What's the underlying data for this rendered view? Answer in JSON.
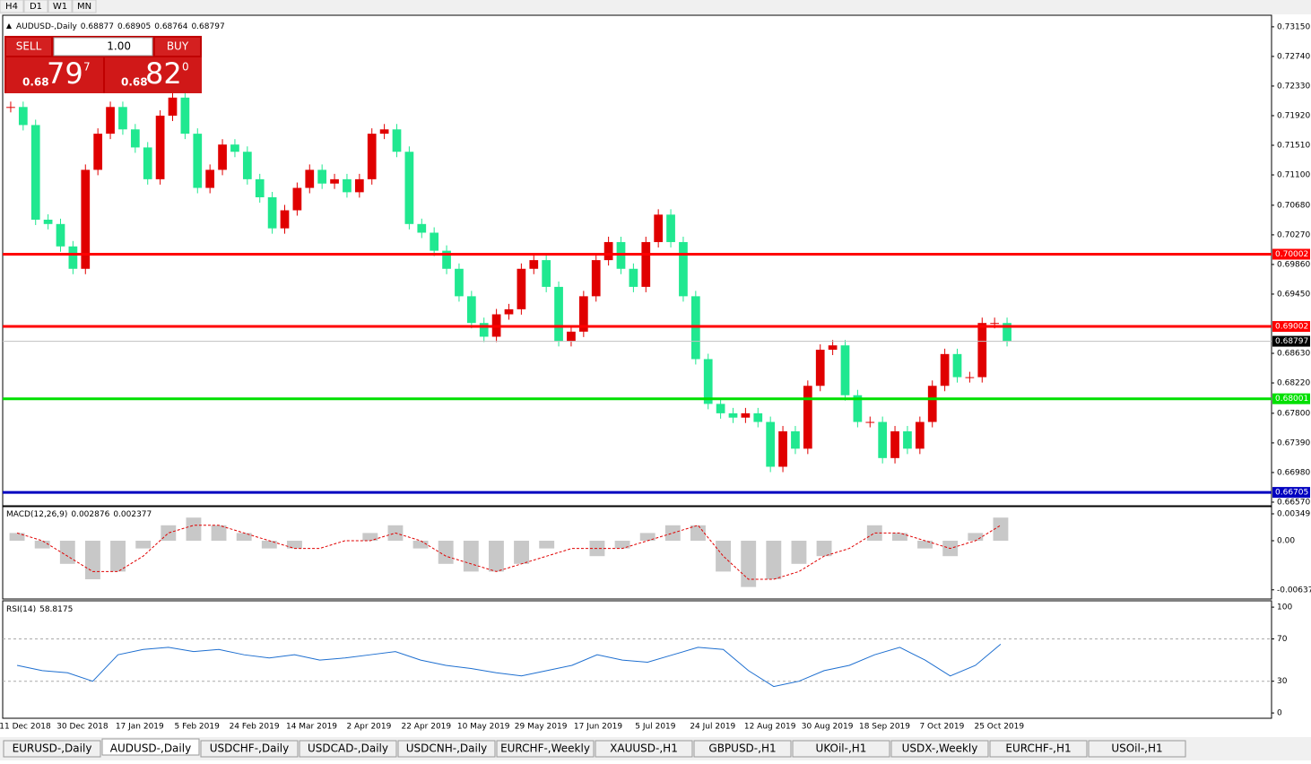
{
  "toolbar": {
    "timeframes": [
      "H4",
      "D1",
      "W1",
      "MN"
    ]
  },
  "trade_panel": {
    "sell": "SELL",
    "buy": "BUY",
    "lot": "1.00",
    "sell_price": [
      "0.68",
      "79",
      "7"
    ],
    "buy_price": [
      "0.68",
      "82",
      "0"
    ]
  },
  "chart_data": [
    {
      "type": "candlestick",
      "title": "AUDUSD-,Daily",
      "ohlc": [
        0.68877,
        0.68905,
        0.68764,
        0.68797
      ],
      "closes": [
        0.7204,
        0.7179,
        0.7048,
        0.7042,
        0.7011,
        0.698,
        0.7117,
        0.7167,
        0.7204,
        0.7173,
        0.7148,
        0.7104,
        0.7192,
        0.7217,
        0.7167,
        0.7092,
        0.7117,
        0.7152,
        0.7142,
        0.7104,
        0.7079,
        0.7036,
        0.7061,
        0.7092,
        0.7117,
        0.7098,
        0.7104,
        0.7086,
        0.7104,
        0.7167,
        0.7173,
        0.7142,
        0.7042,
        0.703,
        0.7005,
        0.698,
        0.6942,
        0.6905,
        0.6886,
        0.6917,
        0.6924,
        0.698,
        0.6992,
        0.6955,
        0.688,
        0.6893,
        0.6942,
        0.6992,
        0.7017,
        0.698,
        0.6955,
        0.7017,
        0.7055,
        0.7017,
        0.6942,
        0.6855,
        0.6793,
        0.678,
        0.6774,
        0.678,
        0.6768,
        0.6706,
        0.6755,
        0.6731,
        0.6818,
        0.6868,
        0.6874,
        0.6805,
        0.6768,
        0.6768,
        0.6718,
        0.6755,
        0.6731,
        0.6768,
        0.6818,
        0.6862,
        0.683,
        0.683,
        0.6905,
        0.6905,
        0.688
      ],
      "up_color": "#e00000",
      "down_color": "#20e890",
      "ylim": [
        0.6652,
        0.7331
      ],
      "yticks": [
        {
          "value": 0.7315,
          "label": "0.73150"
        },
        {
          "value": 0.7274,
          "label": "0.72740"
        },
        {
          "value": 0.7233,
          "label": "0.72330"
        },
        {
          "value": 0.7192,
          "label": "0.71920"
        },
        {
          "value": 0.7151,
          "label": "0.71510"
        },
        {
          "value": 0.711,
          "label": "0.71100"
        },
        {
          "value": 0.7068,
          "label": "0.70680"
        },
        {
          "value": 0.7027,
          "label": "0.70270"
        },
        {
          "value": 0.6986,
          "label": "0.69860"
        },
        {
          "value": 0.6945,
          "label": "0.69450"
        },
        {
          "value": 0.6863,
          "label": "0.68630"
        },
        {
          "value": 0.6822,
          "label": "0.68220"
        },
        {
          "value": 0.678,
          "label": "0.67800"
        },
        {
          "value": 0.6739,
          "label": "0.67390"
        },
        {
          "value": 0.6698,
          "label": "0.66980"
        },
        {
          "value": 0.6657,
          "label": "0.66570"
        }
      ],
      "hlines": [
        {
          "value": 0.70002,
          "color": "#ff0000"
        },
        {
          "value": 0.69002,
          "color": "#ff0000"
        },
        {
          "value": 0.68001,
          "color": "#00e000"
        },
        {
          "value": 0.66705,
          "color": "#0000c0"
        }
      ],
      "current_price": 0.68797,
      "dates": [
        "11 Dec 2018",
        "30 Dec 2018",
        "17 Jan 2019",
        "5 Feb 2019",
        "24 Feb 2019",
        "14 Mar 2019",
        "2 Apr 2019",
        "22 Apr 2019",
        "10 May 2019",
        "29 May 2019",
        "17 Jun 2019",
        "5 Jul 2019",
        "24 Jul 2019",
        "12 Aug 2019",
        "30 Aug 2019",
        "18 Sep 2019",
        "7 Oct 2019",
        "25 Oct 2019"
      ]
    },
    {
      "type": "macd",
      "title": "MACD(12,26,9)",
      "legend_values": [
        0.002876,
        0.002377
      ],
      "histogram": [
        0.001,
        -0.001,
        -0.003,
        -0.005,
        -0.004,
        -0.001,
        0.002,
        0.003,
        0.002,
        0.001,
        -0.001,
        -0.001,
        0.0,
        0.0,
        0.001,
        0.002,
        -0.001,
        -0.003,
        -0.004,
        -0.004,
        -0.003,
        -0.001,
        0.0,
        -0.002,
        -0.001,
        0.001,
        0.002,
        0.002,
        -0.004,
        -0.006,
        -0.005,
        -0.003,
        -0.002,
        0.0,
        0.002,
        0.001,
        -0.001,
        -0.002,
        0.001,
        0.003
      ],
      "signal": [
        0.001,
        0.0,
        -0.002,
        -0.004,
        -0.004,
        -0.002,
        0.001,
        0.002,
        0.002,
        0.001,
        0.0,
        -0.001,
        -0.001,
        0.0,
        0.0,
        0.001,
        0.0,
        -0.002,
        -0.003,
        -0.004,
        -0.003,
        -0.002,
        -0.001,
        -0.001,
        -0.001,
        0.0,
        0.001,
        0.002,
        -0.002,
        -0.005,
        -0.005,
        -0.004,
        -0.002,
        -0.001,
        0.001,
        0.001,
        0.0,
        -0.001,
        0.0,
        0.002
      ],
      "ylim": [
        -0.00756,
        0.00442
      ],
      "yticks": [
        {
          "value": 0.00349,
          "label": "0.00349"
        },
        {
          "value": 0,
          "label": "0.00"
        },
        {
          "value": -0.00637,
          "label": "-0.00637"
        }
      ]
    },
    {
      "type": "line",
      "title": "RSI(14)",
      "legend_value": 58.8175,
      "values": [
        45,
        40,
        38,
        30,
        55,
        60,
        62,
        58,
        60,
        55,
        52,
        55,
        50,
        52,
        55,
        58,
        50,
        45,
        42,
        38,
        35,
        40,
        45,
        55,
        50,
        48,
        55,
        62,
        60,
        40,
        25,
        30,
        40,
        45,
        55,
        62,
        50,
        35,
        45,
        65
      ],
      "color": "#1e6fd0",
      "ylim": [
        -5,
        106
      ],
      "yticks": [
        100,
        70,
        30,
        0
      ],
      "levels": [
        70,
        30
      ]
    }
  ],
  "tabs": {
    "items": [
      "EURUSD-,Daily",
      "AUDUSD-,Daily",
      "USDCHF-,Daily",
      "USDCAD-,Daily",
      "USDCNH-,Daily",
      "EURCHF-,Weekly",
      "XAUUSD-,H1",
      "GBPUSD-,H1",
      "UKOil-,H1",
      "USDX-,Weekly",
      "EURCHF-,H1",
      "USOil-,H1"
    ],
    "active": 1
  }
}
